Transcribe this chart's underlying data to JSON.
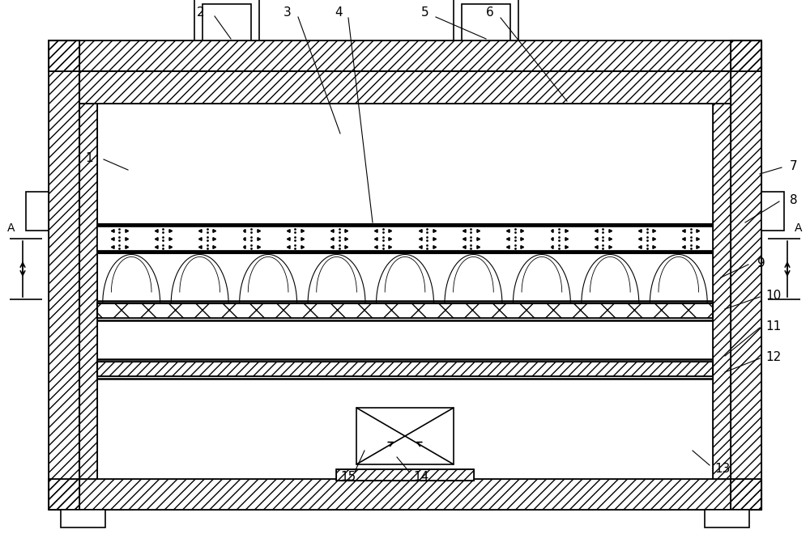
{
  "bg_color": "#ffffff",
  "line_color": "#000000",
  "fig_width": 10.0,
  "fig_height": 6.65
}
